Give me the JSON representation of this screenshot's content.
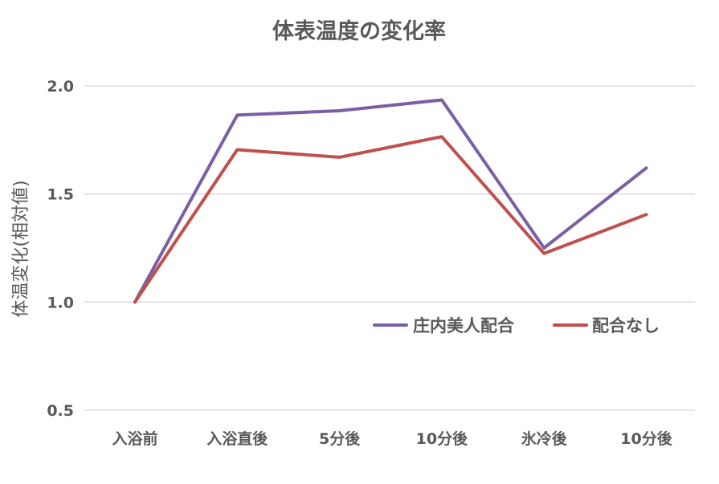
{
  "chart_data": {
    "type": "line",
    "title": "体表温度の変化率",
    "xlabel": "",
    "ylabel": "体温変化(相対値)",
    "categories": [
      "入浴前",
      "入浴直後",
      "5分後",
      "10分後",
      "氷冷後",
      "10分後"
    ],
    "yticks": [
      "0.5",
      "1.0",
      "1.5",
      "2.0"
    ],
    "ylim": [
      0.5,
      2.0
    ],
    "grid": true,
    "legend_position": "right",
    "series": [
      {
        "name": "庄内美人配合",
        "color": "#7A5FA4",
        "values": [
          1.0,
          1.865,
          1.885,
          1.935,
          1.25,
          1.62
        ]
      },
      {
        "name": "配合なし",
        "color": "#C0504D",
        "values": [
          1.0,
          1.705,
          1.67,
          1.765,
          1.225,
          1.405
        ]
      }
    ]
  }
}
